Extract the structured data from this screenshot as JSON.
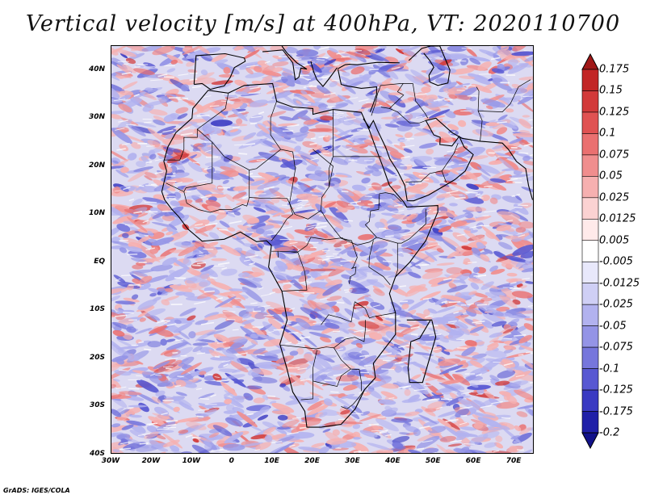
{
  "title": "Vertical velocity [m/s] at 400hPa, VT: 2020110700",
  "credit": "GrADS: IGES/COLA",
  "map": {
    "lon_range": [
      -30,
      75
    ],
    "lat_range": [
      -40,
      45
    ],
    "lat_ticks": [
      {
        "value": 40,
        "label": "40N"
      },
      {
        "value": 30,
        "label": "30N"
      },
      {
        "value": 20,
        "label": "20N"
      },
      {
        "value": 10,
        "label": "10N"
      },
      {
        "value": 0,
        "label": "EQ"
      },
      {
        "value": -10,
        "label": "10S"
      },
      {
        "value": -20,
        "label": "20S"
      },
      {
        "value": -30,
        "label": "30S"
      },
      {
        "value": -40,
        "label": "40S"
      }
    ],
    "lon_ticks": [
      {
        "value": -30,
        "label": "30W"
      },
      {
        "value": -20,
        "label": "20W"
      },
      {
        "value": -10,
        "label": "10W"
      },
      {
        "value": 0,
        "label": "0"
      },
      {
        "value": 10,
        "label": "10E"
      },
      {
        "value": 20,
        "label": "20E"
      },
      {
        "value": 30,
        "label": "30E"
      },
      {
        "value": 40,
        "label": "40E"
      },
      {
        "value": 50,
        "label": "50E"
      },
      {
        "value": 60,
        "label": "60E"
      },
      {
        "value": 70,
        "label": "70E"
      }
    ]
  },
  "colorbar": {
    "levels": [
      "0.175",
      "0.15",
      "0.125",
      "0.1",
      "0.075",
      "0.05",
      "0.025",
      "0.0125",
      "0.005",
      "-0.005",
      "-0.0125",
      "-0.025",
      "-0.05",
      "-0.075",
      "-0.1",
      "-0.125",
      "-0.175",
      "-0.2"
    ],
    "colors": [
      "#a01818",
      "#c22626",
      "#d23a3a",
      "#e05252",
      "#ea7070",
      "#f08e8e",
      "#f6b0b0",
      "#fbd2d2",
      "#ffeaea",
      "#ffffff",
      "#e8e8fb",
      "#cfcff5",
      "#b2b2ef",
      "#9494e6",
      "#7676dc",
      "#5858d2",
      "#3a3ac2",
      "#2020a8",
      "#12128a"
    ]
  }
}
